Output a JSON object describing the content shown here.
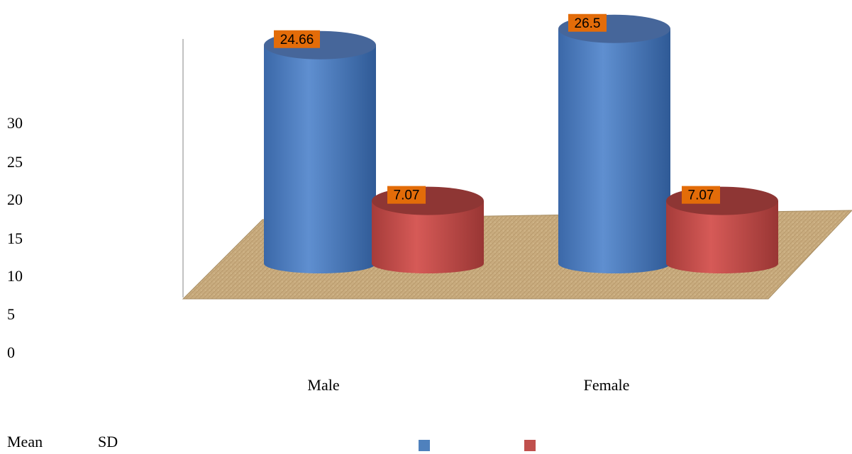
{
  "chart_data": {
    "type": "bar",
    "style": "3d-cylinder",
    "categories": [
      "Male",
      "Female"
    ],
    "series": [
      {
        "name": "Mean",
        "values": [
          24.66,
          26.5
        ],
        "color": "#4f81bd",
        "label_text": [
          "24.66",
          "26.5"
        ]
      },
      {
        "name": "SD",
        "values": [
          7.07,
          7.07
        ],
        "color": "#c0504d",
        "label_text": [
          "7.07",
          "7.07"
        ]
      }
    ],
    "y_ticks": [
      "30",
      "25",
      "20",
      "15",
      "10",
      "5",
      "0"
    ],
    "ylim": [
      0,
      30
    ],
    "legend_labels": [
      "Mean",
      "SD"
    ],
    "legend_position": "bottom",
    "data_label_background": "#e36c09",
    "floor_color": "#c8ab7e",
    "grid": false
  }
}
